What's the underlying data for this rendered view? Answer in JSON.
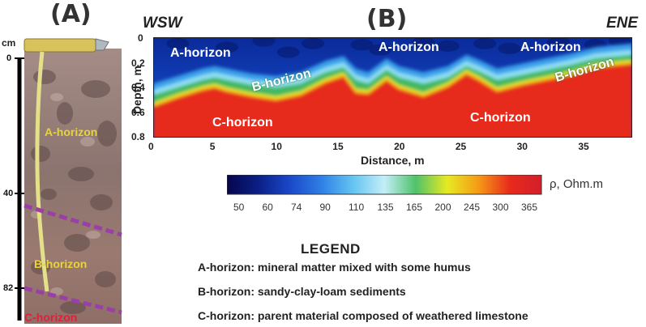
{
  "panel_a": {
    "label": "(A)",
    "unit_label": "cm",
    "depth_ticks": [
      "0",
      "40",
      "82"
    ],
    "horizons": [
      {
        "name": "A-horizon",
        "color": "#e8d33a"
      },
      {
        "name": "B-horizon",
        "color": "#e8d33a"
      },
      {
        "name": "C-horizon",
        "color": "#e0203a"
      }
    ],
    "boundary_color": "#9b3fa8"
  },
  "panel_b": {
    "label": "(B)",
    "left_direction": "WSW",
    "right_direction": "ENE",
    "horizon_labels": {
      "a1": "A-horizon",
      "a2": "A-horizon",
      "a3": "A-horizon",
      "b1": "B-horizon",
      "b2": "B-horizon",
      "c1": "C-horizon",
      "c2": "C-horizon"
    }
  },
  "chart_data": {
    "type": "heatmap",
    "title": "",
    "xlabel": "Distance, m",
    "ylabel": "Depth, m",
    "xlim": [
      0,
      39
    ],
    "ylim": [
      0.8,
      0
    ],
    "x_ticks": [
      0,
      5,
      10,
      15,
      20,
      25,
      30,
      35
    ],
    "y_ticks": [
      "0",
      "0.2",
      "0.4",
      "0.6",
      "0.8"
    ],
    "boundary_profiles": {
      "description": "depth (m) of the A/B and B/C transitions along the profile",
      "x": [
        0,
        2,
        4,
        5,
        6,
        8,
        10,
        12,
        14,
        15.5,
        16.5,
        17.5,
        19,
        20,
        22,
        24,
        25.5,
        26.5,
        28,
        30,
        32,
        34,
        36,
        38,
        39
      ],
      "ab_boundary": [
        0.42,
        0.36,
        0.3,
        0.28,
        0.3,
        0.34,
        0.36,
        0.33,
        0.24,
        0.2,
        0.3,
        0.33,
        0.22,
        0.28,
        0.33,
        0.28,
        0.19,
        0.23,
        0.3,
        0.26,
        0.22,
        0.18,
        0.13,
        0.11,
        0.1
      ],
      "bc_boundary": [
        0.56,
        0.49,
        0.43,
        0.41,
        0.44,
        0.48,
        0.51,
        0.47,
        0.37,
        0.32,
        0.45,
        0.46,
        0.35,
        0.42,
        0.48,
        0.4,
        0.3,
        0.35,
        0.44,
        0.39,
        0.35,
        0.31,
        0.25,
        0.23,
        0.22
      ]
    },
    "colorbar": {
      "label": "ρ, Ohm.m",
      "ticks": [
        "50",
        "60",
        "74",
        "90",
        "110",
        "135",
        "165",
        "200",
        "245",
        "300",
        "365"
      ],
      "colors": [
        "#05064a",
        "#0b1f86",
        "#1a48c8",
        "#2f7fe6",
        "#63c4f0",
        "#c4eef8",
        "#4fc26a",
        "#e6ea22",
        "#f59a16",
        "#e72a1c",
        "#d31f2b"
      ]
    }
  },
  "legend": {
    "title": "LEGEND",
    "items": [
      "A-horizon: mineral matter mixed with some humus",
      "B-horizon: sandy-clay-loam sediments",
      "C-horizon: parent material composed of weathered limestone"
    ]
  }
}
